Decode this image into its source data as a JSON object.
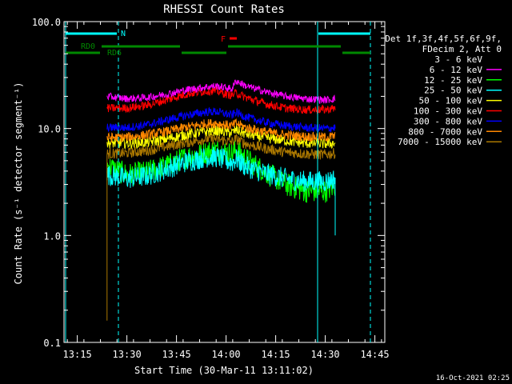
{
  "chart_data": {
    "type": "line",
    "title": "RHESSI Count Rates",
    "xlabel": "Start Time (30-Mar-11 13:11:02)",
    "ylabel": "Count Rate (s⁻¹ detector segment⁻¹)",
    "yscale": "log",
    "ylim": [
      0.1,
      100.0
    ],
    "xlim_minutes": [
      13.183,
      14.8
    ],
    "x_ticks": [
      {
        "label": "13:15",
        "t": 13.25
      },
      {
        "label": "13:30",
        "t": 13.5
      },
      {
        "label": "13:45",
        "t": 13.75
      },
      {
        "label": "14:00",
        "t": 14.0
      },
      {
        "label": "14:15",
        "t": 14.25
      },
      {
        "label": "14:30",
        "t": 14.5
      },
      {
        "label": "14:45",
        "t": 14.75
      }
    ],
    "y_ticks": [
      "0.1",
      "1.0",
      "10.0",
      "100.0"
    ],
    "legend_header": [
      "Det 1f,3f,4f,5f,6f,9f,",
      "FDecim 2, Att 0"
    ],
    "legend_placement": "right",
    "series": [
      {
        "name": "3 - 6 keV",
        "color": "#000000",
        "x": [
          13.4,
          13.5,
          13.6,
          13.7,
          13.8,
          13.9,
          13.95,
          14.0,
          14.03,
          14.05,
          14.1,
          14.2,
          14.3,
          14.4,
          14.5,
          14.55
        ],
        "values": [
          5.5,
          4.7,
          4.9,
          5.6,
          6.9,
          7.9,
          8.3,
          7.8,
          7.6,
          8.8,
          7.0,
          5.2,
          3.8,
          3.3,
          3.1,
          3.4
        ]
      },
      {
        "name": "6 - 12 keV",
        "color": "#ff00ff",
        "x": [
          13.4,
          13.5,
          13.6,
          13.7,
          13.8,
          13.9,
          13.95,
          14.0,
          14.03,
          14.05,
          14.1,
          14.2,
          14.3,
          14.4,
          14.5,
          14.55
        ],
        "values": [
          20,
          19,
          19.5,
          21,
          23,
          24.5,
          25,
          24,
          23.5,
          28,
          25,
          22,
          20,
          19,
          18.5,
          19
        ]
      },
      {
        "name": "12 - 25 keV",
        "color": "#00ff00",
        "x": [
          13.4,
          13.5,
          13.6,
          13.7,
          13.8,
          13.9,
          13.95,
          14.0,
          14.03,
          14.05,
          14.1,
          14.2,
          14.3,
          14.4,
          14.5,
          14.55
        ],
        "values": [
          4.5,
          3.7,
          3.9,
          4.5,
          5.4,
          6.0,
          6.3,
          6.0,
          5.8,
          6.3,
          5.2,
          3.9,
          3.0,
          2.6,
          2.6,
          2.9
        ]
      },
      {
        "name": "25 - 50 keV",
        "color": "#00ffff",
        "x": [
          13.4,
          13.5,
          13.6,
          13.7,
          13.8,
          13.9,
          13.95,
          14.0,
          14.03,
          14.05,
          14.1,
          14.2,
          14.3,
          14.4,
          14.5,
          14.55
        ],
        "values": [
          3.7,
          3.4,
          3.6,
          4.2,
          4.9,
          5.4,
          5.4,
          5.0,
          4.8,
          5.2,
          4.4,
          3.8,
          3.4,
          3.2,
          3.2,
          3.4
        ]
      },
      {
        "name": "50 - 100 keV",
        "color": "#ffff00",
        "x": [
          13.4,
          13.5,
          13.6,
          13.7,
          13.8,
          13.9,
          13.95,
          14.0,
          14.03,
          14.05,
          14.1,
          14.2,
          14.3,
          14.4,
          14.5,
          14.55
        ],
        "values": [
          7.3,
          7.3,
          7.4,
          8.0,
          8.8,
          9.4,
          9.6,
          9.3,
          9.1,
          9.7,
          8.9,
          8.2,
          7.7,
          7.3,
          7.2,
          7.3
        ]
      },
      {
        "name": "100 - 300 keV",
        "color": "#ff0000",
        "x": [
          13.4,
          13.5,
          13.6,
          13.7,
          13.8,
          13.9,
          13.95,
          14.0,
          14.03,
          14.05,
          14.1,
          14.2,
          14.3,
          14.4,
          14.5,
          14.55
        ],
        "values": [
          15.5,
          15.5,
          16.5,
          18.5,
          21,
          22.5,
          22.5,
          21,
          20.5,
          21.5,
          19.5,
          17,
          15.5,
          15,
          15,
          15.5
        ]
      },
      {
        "name": "300 - 800 keV",
        "color": "#0000ff",
        "x": [
          13.4,
          13.5,
          13.6,
          13.7,
          13.8,
          13.9,
          13.95,
          14.0,
          14.03,
          14.05,
          14.1,
          14.2,
          14.3,
          14.4,
          14.5,
          14.55
        ],
        "values": [
          10.2,
          10.2,
          10.8,
          12,
          13.3,
          14.3,
          14.4,
          13.7,
          13.3,
          14.2,
          12.8,
          11.4,
          10.6,
          10.2,
          10.0,
          10.2
        ]
      },
      {
        "name": "800 - 7000 keV",
        "color": "#ff8800",
        "x": [
          13.4,
          13.5,
          13.6,
          13.7,
          13.8,
          13.9,
          13.95,
          14.0,
          14.03,
          14.05,
          14.1,
          14.2,
          14.3,
          14.4,
          14.5,
          14.55
        ],
        "values": [
          8.2,
          8.3,
          8.7,
          9.4,
          10.3,
          11.1,
          11.2,
          10.8,
          10.6,
          11.2,
          10.2,
          9.3,
          8.7,
          8.4,
          8.3,
          8.5
        ]
      },
      {
        "name": "7000 - 15000 keV",
        "color": "#aa7700",
        "x": [
          13.4,
          13.5,
          13.6,
          13.7,
          13.8,
          13.9,
          13.95,
          14.0,
          14.03,
          14.05,
          14.1,
          14.2,
          14.3,
          14.4,
          14.5,
          14.55
        ],
        "values": [
          5.8,
          5.9,
          6.2,
          6.8,
          7.4,
          8.0,
          8.0,
          7.7,
          7.5,
          8.0,
          7.2,
          6.5,
          6.0,
          5.8,
          5.7,
          5.9
        ]
      }
    ],
    "annotations": [
      {
        "label": "N",
        "color": "#00ffff"
      },
      {
        "label": "RD0",
        "color": "#008800"
      },
      {
        "label": "RD6",
        "color": "#008800"
      },
      {
        "label": "F",
        "color": "#ff0000"
      }
    ],
    "footer": "16-Oct-2021 02:25"
  }
}
